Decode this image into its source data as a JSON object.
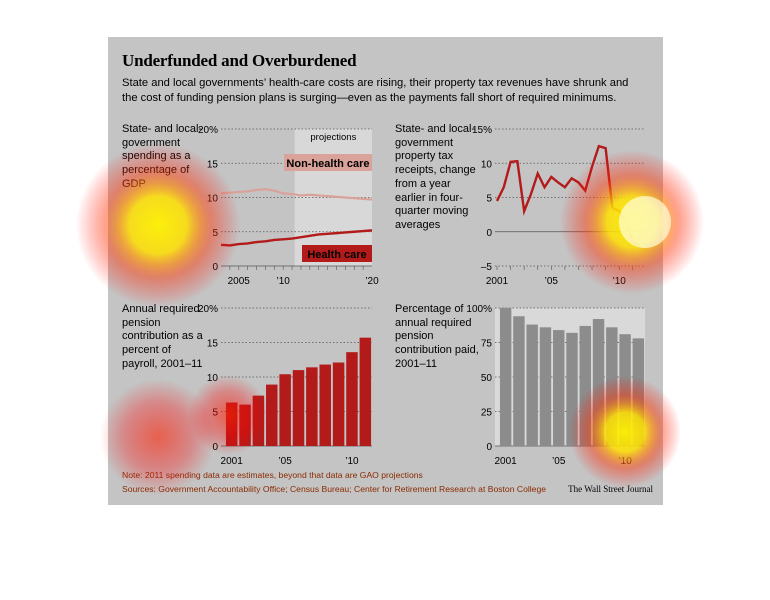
{
  "header": {
    "title": "Underfunded and Overburdened",
    "subtitle": "State and local governments’ health-care costs are rising, their property tax revenues have shrunk and the cost of funding pension plans is surging—even as the payments fall short of required minimums."
  },
  "footer": {
    "note": "Note: 2011 spending data are estimates, beyond that data are GAO projections",
    "sources": "Sources: Government Accountability Office; Census Bureau; Center for Retirement Research at Boston College",
    "credit": "The Wall Street Journal"
  },
  "colors": {
    "panel": "#c4c4c4",
    "dark_red": "#b31b1b",
    "light_red": "#d9a29a",
    "gray_bar": "#8c8c8c",
    "heat_yellow": "#fff200",
    "heat_red": "#ff0000"
  },
  "chart_data": [
    {
      "type": "line",
      "label": "State- and local-government spending as a percentage of GDP",
      "x": [
        2003,
        2004,
        2005,
        2006,
        2007,
        2008,
        2009,
        2010,
        2011,
        2012,
        2013,
        2014,
        2015,
        2016,
        2017,
        2018,
        2019,
        2020
      ],
      "series": [
        {
          "name": "Non-health care",
          "values": [
            10.6,
            10.7,
            10.8,
            10.9,
            11.1,
            11.2,
            11.0,
            10.6,
            10.5,
            10.3,
            10.4,
            10.3,
            10.2,
            10.1,
            10.0,
            9.9,
            9.8,
            9.7
          ]
        },
        {
          "name": "Health care",
          "values": [
            3.1,
            3.0,
            3.2,
            3.3,
            3.5,
            3.6,
            3.8,
            3.9,
            4.0,
            4.2,
            4.4,
            4.6,
            4.7,
            4.8,
            4.9,
            5.0,
            5.1,
            5.2
          ]
        }
      ],
      "annotation": "projections",
      "yticks": [
        "20%",
        "15",
        "10",
        "5",
        "0"
      ],
      "xticks": [
        "2005",
        "’10",
        "’20"
      ],
      "ylim": [
        0,
        20
      ]
    },
    {
      "type": "line",
      "label": "State- and local-government property tax receipts, change from a year earlier in four-quarter moving averages",
      "x": [
        2001,
        2001.5,
        2002,
        2002.5,
        2003,
        2003.5,
        2004,
        2004.5,
        2005,
        2005.5,
        2006,
        2006.5,
        2007,
        2007.5,
        2008,
        2008.5,
        2009,
        2009.5,
        2010,
        2010.5,
        2011,
        2011.5
      ],
      "series": [
        {
          "name": "",
          "values": [
            4.5,
            6.5,
            10.2,
            10.3,
            3.0,
            5.5,
            8.5,
            6.5,
            8.0,
            7.2,
            6.5,
            7.8,
            7.2,
            6.0,
            9.5,
            12.5,
            12.2,
            3.5,
            3.0,
            1.5,
            -1.5,
            -2.0
          ]
        }
      ],
      "yticks": [
        "15%",
        "10",
        "5",
        "0",
        "–5"
      ],
      "xticks": [
        "2001",
        "’05",
        "’10"
      ],
      "ylim": [
        -5,
        15
      ]
    },
    {
      "type": "bar",
      "label": "Annual required pension contribution as a percent of payroll, 2001–11",
      "categories": [
        "2001",
        "2002",
        "2003",
        "2004",
        "2005",
        "2006",
        "2007",
        "2008",
        "2009",
        "2010",
        "2011"
      ],
      "values": [
        6.3,
        6.0,
        7.3,
        8.9,
        10.4,
        11.0,
        11.4,
        11.8,
        12.1,
        13.6,
        15.7
      ],
      "yticks": [
        "20%",
        "15",
        "10",
        "5",
        "0"
      ],
      "xticks": [
        "2001",
        "’05",
        "’10"
      ],
      "ylim": [
        0,
        20
      ]
    },
    {
      "type": "bar",
      "label": "Percentage of annual required pension contribution paid, 2001–11",
      "categories": [
        "2001",
        "2002",
        "2003",
        "2004",
        "2005",
        "2006",
        "2007",
        "2008",
        "2009",
        "2010",
        "2011"
      ],
      "values": [
        100,
        94,
        88,
        86,
        84,
        82,
        87,
        92,
        86,
        81,
        78
      ],
      "yticks": [
        "100%",
        "75",
        "50",
        "25",
        "0"
      ],
      "xticks": [
        "2001",
        "’05",
        "’10"
      ],
      "ylim": [
        0,
        100
      ]
    }
  ]
}
